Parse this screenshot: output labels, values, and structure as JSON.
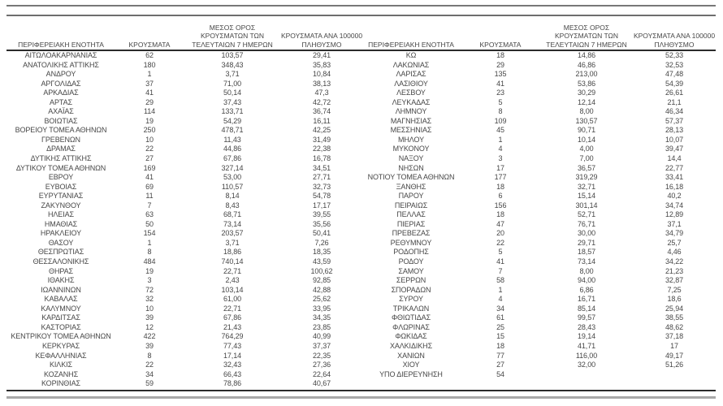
{
  "headers": {
    "region": "ΠΕΡΙΦΕΡΕΙΑΚΗ ΕΝΟΤΗΤΑ",
    "cases": "ΚΡΟΥΣΜΑΤΑ",
    "avg7_line1": "ΜΕΣΟΣ ΟΡΟΣ",
    "avg7_line2": "ΚΡΟΥΣΜΑΤΩΝ ΤΩΝ",
    "avg7_line3": "ΤΕΛΕΥΤΑΙΩΝ 7 ΗΜΕΡΩΝ",
    "per100k_line1": "ΚΡΟΥΣΜΑΤΑ ΑΝΑ 100000",
    "per100k_line2": "ΠΛΗΘΥΣΜΟ"
  },
  "colors": {
    "text": "#474747",
    "rule_dark": "#2b2b2b",
    "rule_grey_top": "#6e6e6e",
    "rule_grey_bottom": "#a8a8a8",
    "background": "#ffffff"
  },
  "table_left": {
    "rows": [
      {
        "name": "ΑΙΤΩΛΟΑΚΑΡΝΑΝΙΑΣ",
        "cases": "62",
        "avg7": "103,57",
        "per100k": "29,41"
      },
      {
        "name": "ΑΝΑΤΟΛΙΚΗΣ ΑΤΤΙΚΗΣ",
        "cases": "180",
        "avg7": "348,43",
        "per100k": "35,83"
      },
      {
        "name": "ΑΝΔΡΟΥ",
        "cases": "1",
        "avg7": "3,71",
        "per100k": "10,84"
      },
      {
        "name": "ΑΡΓΟΛΙΔΑΣ",
        "cases": "37",
        "avg7": "71,00",
        "per100k": "38,13"
      },
      {
        "name": "ΑΡΚΑΔΙΑΣ",
        "cases": "41",
        "avg7": "50,14",
        "per100k": "47,3"
      },
      {
        "name": "ΑΡΤΑΣ",
        "cases": "29",
        "avg7": "37,43",
        "per100k": "42,72"
      },
      {
        "name": "ΑΧΑΪΑΣ",
        "cases": "114",
        "avg7": "133,71",
        "per100k": "36,74"
      },
      {
        "name": "ΒΟΙΩΤΙΑΣ",
        "cases": "19",
        "avg7": "54,29",
        "per100k": "16,11"
      },
      {
        "name": "ΒΟΡΕΙΟΥ ΤΟΜΕΑ ΑΘΗΝΩΝ",
        "cases": "250",
        "avg7": "478,71",
        "per100k": "42,25"
      },
      {
        "name": "ΓΡΕΒΕΝΩΝ",
        "cases": "10",
        "avg7": "11,43",
        "per100k": "31,49"
      },
      {
        "name": "ΔΡΑΜΑΣ",
        "cases": "22",
        "avg7": "44,86",
        "per100k": "22,38"
      },
      {
        "name": "ΔΥΤΙΚΗΣ ΑΤΤΙΚΗΣ",
        "cases": "27",
        "avg7": "67,86",
        "per100k": "16,78"
      },
      {
        "name": "ΔΥΤΙΚΟΥ ΤΟΜΕΑ ΑΘΗΝΩΝ",
        "cases": "169",
        "avg7": "327,14",
        "per100k": "34,51"
      },
      {
        "name": "ΕΒΡΟΥ",
        "cases": "41",
        "avg7": "53,00",
        "per100k": "27,71"
      },
      {
        "name": "ΕΥΒΟΙΑΣ",
        "cases": "69",
        "avg7": "110,57",
        "per100k": "32,73"
      },
      {
        "name": "ΕΥΡΥΤΑΝΙΑΣ",
        "cases": "11",
        "avg7": "8,14",
        "per100k": "54,78"
      },
      {
        "name": "ΖΑΚΥΝΘΟΥ",
        "cases": "7",
        "avg7": "8,43",
        "per100k": "17,17"
      },
      {
        "name": "ΗΛΕΙΑΣ",
        "cases": "63",
        "avg7": "68,71",
        "per100k": "39,55"
      },
      {
        "name": "ΗΜΑΘΙΑΣ",
        "cases": "50",
        "avg7": "73,14",
        "per100k": "35,56"
      },
      {
        "name": "ΗΡΑΚΛΕΙΟΥ",
        "cases": "154",
        "avg7": "203,57",
        "per100k": "50,41"
      },
      {
        "name": "ΘΑΣΟΥ",
        "cases": "1",
        "avg7": "3,71",
        "per100k": "7,26"
      },
      {
        "name": "ΘΕΣΠΡΩΤΙΑΣ",
        "cases": "8",
        "avg7": "18,86",
        "per100k": "18,35"
      },
      {
        "name": "ΘΕΣΣΑΛΟΝΙΚΗΣ",
        "cases": "484",
        "avg7": "740,14",
        "per100k": "43,59"
      },
      {
        "name": "ΘΗΡΑΣ",
        "cases": "19",
        "avg7": "22,71",
        "per100k": "100,62"
      },
      {
        "name": "ΙΘΑΚΗΣ",
        "cases": "3",
        "avg7": "2,43",
        "per100k": "92,85"
      },
      {
        "name": "ΙΩΑΝΝΙΝΩΝ",
        "cases": "72",
        "avg7": "103,14",
        "per100k": "42,88"
      },
      {
        "name": "ΚΑΒΑΛΑΣ",
        "cases": "32",
        "avg7": "61,00",
        "per100k": "25,62"
      },
      {
        "name": "ΚΑΛΥΜΝΟΥ",
        "cases": "10",
        "avg7": "22,71",
        "per100k": "33,95"
      },
      {
        "name": "ΚΑΡΔΙΤΣΑΣ",
        "cases": "39",
        "avg7": "67,86",
        "per100k": "34,35"
      },
      {
        "name": "ΚΑΣΤΟΡΙΑΣ",
        "cases": "12",
        "avg7": "21,43",
        "per100k": "23,85"
      },
      {
        "name": "ΚΕΝΤΡΙΚΟΥ ΤΟΜΕΑ ΑΘΗΝΩΝ",
        "cases": "422",
        "avg7": "764,29",
        "per100k": "40,99"
      },
      {
        "name": "ΚΕΡΚΥΡΑΣ",
        "cases": "39",
        "avg7": "77,43",
        "per100k": "37,37"
      },
      {
        "name": "ΚΕΦΑΛΛΗΝΙΑΣ",
        "cases": "8",
        "avg7": "17,14",
        "per100k": "22,35"
      },
      {
        "name": "ΚΙΛΚΙΣ",
        "cases": "22",
        "avg7": "32,43",
        "per100k": "27,36"
      },
      {
        "name": "ΚΟΖΑΝΗΣ",
        "cases": "34",
        "avg7": "66,43",
        "per100k": "22,64"
      },
      {
        "name": "ΚΟΡΙΝΘΙΑΣ",
        "cases": "59",
        "avg7": "78,86",
        "per100k": "40,67"
      }
    ]
  },
  "table_right": {
    "rows": [
      {
        "name": "ΚΩ",
        "cases": "18",
        "avg7": "14,86",
        "per100k": "52,33"
      },
      {
        "name": "ΛΑΚΩΝΙΑΣ",
        "cases": "29",
        "avg7": "46,86",
        "per100k": "32,53"
      },
      {
        "name": "ΛΑΡΙΣΑΣ",
        "cases": "135",
        "avg7": "213,00",
        "per100k": "47,48"
      },
      {
        "name": "ΛΑΣΙΘΙΟΥ",
        "cases": "41",
        "avg7": "53,86",
        "per100k": "54,39"
      },
      {
        "name": "ΛΕΣΒΟΥ",
        "cases": "23",
        "avg7": "30,29",
        "per100k": "26,61"
      },
      {
        "name": "ΛΕΥΚΑΔΑΣ",
        "cases": "5",
        "avg7": "12,14",
        "per100k": "21,1"
      },
      {
        "name": "ΛΗΜΝΟΥ",
        "cases": "8",
        "avg7": "8,00",
        "per100k": "46,34"
      },
      {
        "name": "ΜΑΓΝΗΣΙΑΣ",
        "cases": "109",
        "avg7": "130,57",
        "per100k": "57,37"
      },
      {
        "name": "ΜΕΣΣΗΝΙΑΣ",
        "cases": "45",
        "avg7": "90,71",
        "per100k": "28,13"
      },
      {
        "name": "ΜΗΛΟΥ",
        "cases": "1",
        "avg7": "10,14",
        "per100k": "10,07"
      },
      {
        "name": "ΜΥΚΟΝΟΥ",
        "cases": "4",
        "avg7": "4,00",
        "per100k": "39,47"
      },
      {
        "name": "ΝΑΞΟΥ",
        "cases": "3",
        "avg7": "7,00",
        "per100k": "14,4"
      },
      {
        "name": "ΝΗΣΩΝ",
        "cases": "17",
        "avg7": "36,57",
        "per100k": "22,77"
      },
      {
        "name": "ΝΟΤΙΟΥ ΤΟΜΕΑ ΑΘΗΝΩΝ",
        "cases": "177",
        "avg7": "319,29",
        "per100k": "33,41"
      },
      {
        "name": "ΞΑΝΘΗΣ",
        "cases": "18",
        "avg7": "32,71",
        "per100k": "16,18"
      },
      {
        "name": "ΠΑΡΟΥ",
        "cases": "6",
        "avg7": "15,14",
        "per100k": "40,2"
      },
      {
        "name": "ΠΕΙΡΑΙΩΣ",
        "cases": "156",
        "avg7": "301,14",
        "per100k": "34,74"
      },
      {
        "name": "ΠΕΛΛΑΣ",
        "cases": "18",
        "avg7": "52,71",
        "per100k": "12,89"
      },
      {
        "name": "ΠΙΕΡΙΑΣ",
        "cases": "47",
        "avg7": "76,71",
        "per100k": "37,1"
      },
      {
        "name": "ΠΡΕΒΕΖΑΣ",
        "cases": "20",
        "avg7": "30,00",
        "per100k": "34,79"
      },
      {
        "name": "ΡΕΘΥΜΝΟΥ",
        "cases": "22",
        "avg7": "29,71",
        "per100k": "25,7"
      },
      {
        "name": "ΡΟΔΟΠΗΣ",
        "cases": "5",
        "avg7": "18,57",
        "per100k": "4,46"
      },
      {
        "name": "ΡΟΔΟΥ",
        "cases": "41",
        "avg7": "73,14",
        "per100k": "34,22"
      },
      {
        "name": "ΣΑΜΟΥ",
        "cases": "7",
        "avg7": "8,00",
        "per100k": "21,23"
      },
      {
        "name": "ΣΕΡΡΩΝ",
        "cases": "58",
        "avg7": "94,00",
        "per100k": "32,87"
      },
      {
        "name": "ΣΠΟΡΑΔΩΝ",
        "cases": "1",
        "avg7": "6,86",
        "per100k": "7,25"
      },
      {
        "name": "ΣΥΡΟΥ",
        "cases": "4",
        "avg7": "16,71",
        "per100k": "18,6"
      },
      {
        "name": "ΤΡΙΚΑΛΩΝ",
        "cases": "34",
        "avg7": "85,14",
        "per100k": "25,94"
      },
      {
        "name": "ΦΘΙΩΤΙΔΑΣ",
        "cases": "61",
        "avg7": "99,57",
        "per100k": "38,55"
      },
      {
        "name": "ΦΛΩΡΙΝΑΣ",
        "cases": "25",
        "avg7": "28,43",
        "per100k": "48,62"
      },
      {
        "name": "ΦΩΚΙΔΑΣ",
        "cases": "15",
        "avg7": "19,14",
        "per100k": "37,18"
      },
      {
        "name": "ΧΑΛΚΙΔΙΚΗΣ",
        "cases": "18",
        "avg7": "41,71",
        "per100k": "17"
      },
      {
        "name": "ΧΑΝΙΩΝ",
        "cases": "77",
        "avg7": "116,00",
        "per100k": "49,17"
      },
      {
        "name": "ΧΙΟΥ",
        "cases": "27",
        "avg7": "32,00",
        "per100k": "51,26"
      },
      {
        "name": "ΥΠΟ ΔΙΕΡΕΥΝΗΣΗ",
        "cases": "54",
        "avg7": "",
        "per100k": ""
      }
    ]
  }
}
